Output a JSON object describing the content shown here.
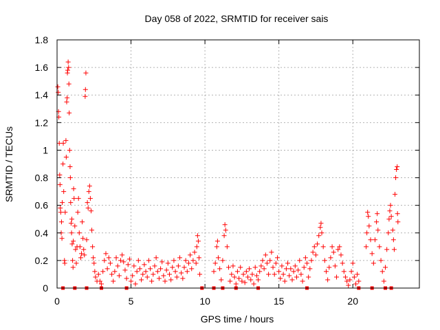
{
  "chart_data": {
    "type": "scatter",
    "title": "Day 058 of 2022, SRMTID for receiver sais",
    "xlabel": "GPS time / hours",
    "ylabel": "SRMTID / TECUs",
    "xlim": [
      0,
      24.5
    ],
    "ylim": [
      0,
      1.8
    ],
    "xticks": [
      0,
      5,
      10,
      15,
      20
    ],
    "xtick_labels": [
      "0",
      "5",
      "10",
      "15",
      "20"
    ],
    "yticks": [
      0,
      0.2,
      0.4,
      0.6,
      0.8,
      1,
      1.2,
      1.4,
      1.6,
      1.8
    ],
    "ytick_labels": [
      "0",
      "0.2",
      "0.4",
      "0.6",
      "0.8",
      "1",
      "1.2",
      "1.4",
      "1.6",
      "1.8"
    ],
    "grid": true,
    "marker": "+",
    "color": "#ff0000",
    "series": [
      {
        "name": "SRMTID",
        "points": [
          [
            0.05,
            1.46
          ],
          [
            0.08,
            1.42
          ],
          [
            0.1,
            1.28
          ],
          [
            0.12,
            1.24
          ],
          [
            0.15,
            1.05
          ],
          [
            0.18,
            0.82
          ],
          [
            0.2,
            0.75
          ],
          [
            0.22,
            0.58
          ],
          [
            0.25,
            0.55
          ],
          [
            0.28,
            0.4
          ],
          [
            0.3,
            0.48
          ],
          [
            0.33,
            0.36
          ],
          [
            0.35,
            0.62
          ],
          [
            0.4,
            0.9
          ],
          [
            0.42,
            1.05
          ],
          [
            0.45,
            0.7
          ],
          [
            0.5,
            0.2
          ],
          [
            0.52,
            0.18
          ],
          [
            0.55,
            0.55
          ],
          [
            0.6,
            1.07
          ],
          [
            0.62,
            0.95
          ],
          [
            0.65,
            1.35
          ],
          [
            0.68,
            1.38
          ],
          [
            0.7,
            1.56
          ],
          [
            0.72,
            1.58
          ],
          [
            0.75,
            1.64
          ],
          [
            0.78,
            1.6
          ],
          [
            0.8,
            1.48
          ],
          [
            0.82,
            1.27
          ],
          [
            0.85,
            1.0
          ],
          [
            0.88,
            0.88
          ],
          [
            0.9,
            0.8
          ],
          [
            0.92,
            0.62
          ],
          [
            0.95,
            0.47
          ],
          [
            0.98,
            0.4
          ],
          [
            1.0,
            0.5
          ],
          [
            1.02,
            0.32
          ],
          [
            1.05,
            0.2
          ],
          [
            1.08,
            0.15
          ],
          [
            1.1,
            0.34
          ],
          [
            1.12,
            0.72
          ],
          [
            1.15,
            0.65
          ],
          [
            1.2,
            0.45
          ],
          [
            1.25,
            0.28
          ],
          [
            1.3,
            0.18
          ],
          [
            1.35,
            0.3
          ],
          [
            1.4,
            0.55
          ],
          [
            1.45,
            0.65
          ],
          [
            1.5,
            0.4
          ],
          [
            1.55,
            0.3
          ],
          [
            1.6,
            0.22
          ],
          [
            1.65,
            0.25
          ],
          [
            1.7,
            0.48
          ],
          [
            1.75,
            0.36
          ],
          [
            1.8,
            0.28
          ],
          [
            1.85,
            0.24
          ],
          [
            1.9,
            1.39
          ],
          [
            1.92,
            1.44
          ],
          [
            1.95,
            1.56
          ],
          [
            2.0,
            0.35
          ],
          [
            2.05,
            0.62
          ],
          [
            2.1,
            0.58
          ],
          [
            2.15,
            0.7
          ],
          [
            2.2,
            0.74
          ],
          [
            2.25,
            0.65
          ],
          [
            2.3,
            0.56
          ],
          [
            2.35,
            0.42
          ],
          [
            2.4,
            0.3
          ],
          [
            2.45,
            0.22
          ],
          [
            2.5,
            0.18
          ],
          [
            2.55,
            0.12
          ],
          [
            2.6,
            0.08
          ],
          [
            2.7,
            0.05
          ],
          [
            2.8,
            0.1
          ],
          [
            2.9,
            0.05
          ],
          [
            3.0,
            0.03
          ],
          [
            3.1,
            0.12
          ],
          [
            3.2,
            0.2
          ],
          [
            3.3,
            0.25
          ],
          [
            3.4,
            0.14
          ],
          [
            3.5,
            0.22
          ],
          [
            3.6,
            0.18
          ],
          [
            3.7,
            0.1
          ],
          [
            3.8,
            0.05
          ],
          [
            3.9,
            0.12
          ],
          [
            4.0,
            0.22
          ],
          [
            4.1,
            0.16
          ],
          [
            4.2,
            0.09
          ],
          [
            4.3,
            0.2
          ],
          [
            4.4,
            0.24
          ],
          [
            4.5,
            0.19
          ],
          [
            4.6,
            0.13
          ],
          [
            4.7,
            0.07
          ],
          [
            4.8,
            0.17
          ],
          [
            4.9,
            0.21
          ],
          [
            5.0,
            0.05
          ],
          [
            5.1,
            0.09
          ],
          [
            5.2,
            0.16
          ],
          [
            5.3,
            0.03
          ],
          [
            5.4,
            0.12
          ],
          [
            5.5,
            0.2
          ],
          [
            5.6,
            0.14
          ],
          [
            5.7,
            0.06
          ],
          [
            5.8,
            0.1
          ],
          [
            5.9,
            0.17
          ],
          [
            6.0,
            0.12
          ],
          [
            6.1,
            0.08
          ],
          [
            6.2,
            0.2
          ],
          [
            6.3,
            0.14
          ],
          [
            6.4,
            0.05
          ],
          [
            6.5,
            0.1
          ],
          [
            6.6,
            0.16
          ],
          [
            6.7,
            0.22
          ],
          [
            6.8,
            0.12
          ],
          [
            6.9,
            0.07
          ],
          [
            7.0,
            0.14
          ],
          [
            7.1,
            0.19
          ],
          [
            7.2,
            0.09
          ],
          [
            7.3,
            0.05
          ],
          [
            7.4,
            0.13
          ],
          [
            7.5,
            0.18
          ],
          [
            7.6,
            0.1
          ],
          [
            7.7,
            0.06
          ],
          [
            7.8,
            0.15
          ],
          [
            7.9,
            0.2
          ],
          [
            8.0,
            0.12
          ],
          [
            8.1,
            0.08
          ],
          [
            8.2,
            0.16
          ],
          [
            8.3,
            0.22
          ],
          [
            8.4,
            0.11
          ],
          [
            8.5,
            0.07
          ],
          [
            8.6,
            0.15
          ],
          [
            8.7,
            0.2
          ],
          [
            8.8,
            0.12
          ],
          [
            8.9,
            0.18
          ],
          [
            9.0,
            0.24
          ],
          [
            9.1,
            0.14
          ],
          [
            9.2,
            0.2
          ],
          [
            9.3,
            0.26
          ],
          [
            9.4,
            0.18
          ],
          [
            9.45,
            0.3
          ],
          [
            9.5,
            0.38
          ],
          [
            9.55,
            0.34
          ],
          [
            9.6,
            0.22
          ],
          [
            9.65,
            0.1
          ],
          [
            10.6,
            0.12
          ],
          [
            10.7,
            0.18
          ],
          [
            10.8,
            0.3
          ],
          [
            10.85,
            0.34
          ],
          [
            10.9,
            0.22
          ],
          [
            11.0,
            0.14
          ],
          [
            11.1,
            0.06
          ],
          [
            11.2,
            0.2
          ],
          [
            11.3,
            0.38
          ],
          [
            11.35,
            0.46
          ],
          [
            11.4,
            0.42
          ],
          [
            11.5,
            0.3
          ],
          [
            11.6,
            0.15
          ],
          [
            11.7,
            0.05
          ],
          [
            11.8,
            0.1
          ],
          [
            11.9,
            0.16
          ],
          [
            12.0,
            0.08
          ],
          [
            12.1,
            0.03
          ],
          [
            12.2,
            0.12
          ],
          [
            12.3,
            0.07
          ],
          [
            12.4,
            0.15
          ],
          [
            12.5,
            0.05
          ],
          [
            12.6,
            0.1
          ],
          [
            12.7,
            0.04
          ],
          [
            12.8,
            0.12
          ],
          [
            12.9,
            0.08
          ],
          [
            13.0,
            0.14
          ],
          [
            13.1,
            0.06
          ],
          [
            13.2,
            0.1
          ],
          [
            13.3,
            0.03
          ],
          [
            13.4,
            0.15
          ],
          [
            13.5,
            0.09
          ],
          [
            13.6,
            0.06
          ],
          [
            13.7,
            0.12
          ],
          [
            13.8,
            0.16
          ],
          [
            13.9,
            0.2
          ],
          [
            14.0,
            0.14
          ],
          [
            14.1,
            0.24
          ],
          [
            14.2,
            0.18
          ],
          [
            14.3,
            0.1
          ],
          [
            14.4,
            0.2
          ],
          [
            14.5,
            0.26
          ],
          [
            14.6,
            0.15
          ],
          [
            14.7,
            0.1
          ],
          [
            14.8,
            0.18
          ],
          [
            14.9,
            0.22
          ],
          [
            15.0,
            0.12
          ],
          [
            15.1,
            0.07
          ],
          [
            15.2,
            0.16
          ],
          [
            15.3,
            0.1
          ],
          [
            15.4,
            0.05
          ],
          [
            15.5,
            0.14
          ],
          [
            15.6,
            0.18
          ],
          [
            15.7,
            0.09
          ],
          [
            15.8,
            0.14
          ],
          [
            15.9,
            0.06
          ],
          [
            16.0,
            0.12
          ],
          [
            16.1,
            0.16
          ],
          [
            16.2,
            0.08
          ],
          [
            16.3,
            0.13
          ],
          [
            16.4,
            0.2
          ],
          [
            16.5,
            0.1
          ],
          [
            16.6,
            0.05
          ],
          [
            16.7,
            0.15
          ],
          [
            16.8,
            0.22
          ],
          [
            16.9,
            0.18
          ],
          [
            17.0,
            0.08
          ],
          [
            17.1,
            0.14
          ],
          [
            17.2,
            0.2
          ],
          [
            17.3,
            0.26
          ],
          [
            17.4,
            0.3
          ],
          [
            17.5,
            0.24
          ],
          [
            17.6,
            0.32
          ],
          [
            17.7,
            0.38
          ],
          [
            17.8,
            0.44
          ],
          [
            17.85,
            0.47
          ],
          [
            17.9,
            0.4
          ],
          [
            18.0,
            0.3
          ],
          [
            18.1,
            0.2
          ],
          [
            18.2,
            0.12
          ],
          [
            18.3,
            0.06
          ],
          [
            18.4,
            0.15
          ],
          [
            18.5,
            0.22
          ],
          [
            18.6,
            0.3
          ],
          [
            18.7,
            0.26
          ],
          [
            18.8,
            0.16
          ],
          [
            18.9,
            0.08
          ],
          [
            19.0,
            0.28
          ],
          [
            19.1,
            0.3
          ],
          [
            19.2,
            0.24
          ],
          [
            19.3,
            0.18
          ],
          [
            19.4,
            0.12
          ],
          [
            19.5,
            0.08
          ],
          [
            19.6,
            0.05
          ],
          [
            19.7,
            0.02
          ],
          [
            19.8,
            0.06
          ],
          [
            19.9,
            0.12
          ],
          [
            20.0,
            0.18
          ],
          [
            20.1,
            0.08
          ],
          [
            20.2,
            0.03
          ],
          [
            20.3,
            0.1
          ],
          [
            20.4,
            0.05
          ],
          [
            20.9,
            0.3
          ],
          [
            20.95,
            0.4
          ],
          [
            21.0,
            0.55
          ],
          [
            21.05,
            0.52
          ],
          [
            21.1,
            0.45
          ],
          [
            21.2,
            0.35
          ],
          [
            21.3,
            0.25
          ],
          [
            21.4,
            0.18
          ],
          [
            21.5,
            0.35
          ],
          [
            21.6,
            0.48
          ],
          [
            21.65,
            0.54
          ],
          [
            21.7,
            0.42
          ],
          [
            21.8,
            0.3
          ],
          [
            21.9,
            0.2
          ],
          [
            22.0,
            0.12
          ],
          [
            22.1,
            0.05
          ],
          [
            22.2,
            0.15
          ],
          [
            22.3,
            0.28
          ],
          [
            22.4,
            0.4
          ],
          [
            22.45,
            0.5
          ],
          [
            22.5,
            0.56
          ],
          [
            22.55,
            0.6
          ],
          [
            22.6,
            0.52
          ],
          [
            22.7,
            0.42
          ],
          [
            22.75,
            0.35
          ],
          [
            22.8,
            0.28
          ],
          [
            22.85,
            0.68
          ],
          [
            22.9,
            0.8
          ],
          [
            22.95,
            0.86
          ],
          [
            23.0,
            0.88
          ],
          [
            23.02,
            0.54
          ],
          [
            23.05,
            0.48
          ]
        ]
      }
    ],
    "gap_markers_x": [
      0.4,
      1.2,
      2.0,
      3.0,
      4.7,
      9.8,
      10.6,
      11.2,
      12.1,
      13.6,
      16.9,
      20.4,
      21.3,
      22.2,
      22.6
    ]
  }
}
